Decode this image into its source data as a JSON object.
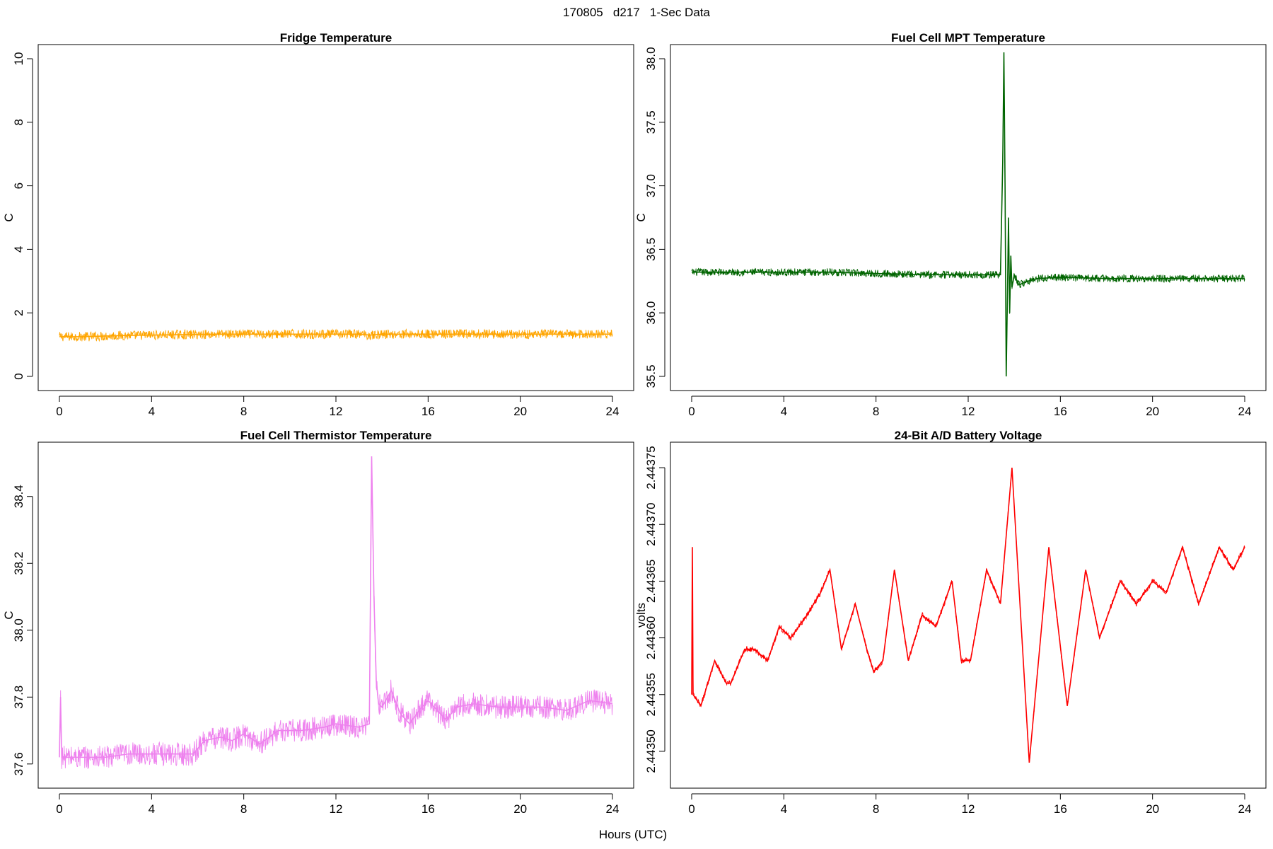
{
  "figure": {
    "title": "170805   d217   1-Sec Data",
    "xlabel": "Hours (UTC)"
  },
  "chart_data": [
    {
      "id": "fridge",
      "type": "line",
      "title": "Fridge Temperature",
      "xlabel": "Hours (UTC)",
      "ylabel": "C",
      "color": "#FFA500",
      "xlim": [
        0,
        24
      ],
      "ylim": [
        0,
        10
      ],
      "xticks": [
        0,
        4,
        8,
        12,
        16,
        20,
        24
      ],
      "yticks": [
        0,
        2,
        4,
        6,
        8,
        10
      ],
      "ytick_labels": [
        "0",
        "2",
        "4",
        "6",
        "8",
        "10"
      ],
      "noise": 0.15,
      "series": [
        {
          "name": "Fridge Temperature",
          "x": [
            0,
            1,
            2,
            3,
            4,
            5,
            6,
            7,
            8,
            9,
            10,
            11,
            12,
            13,
            13.5,
            14,
            15,
            16,
            17,
            18,
            19,
            20,
            21,
            22,
            23,
            24
          ],
          "y": [
            1.25,
            1.25,
            1.27,
            1.29,
            1.3,
            1.31,
            1.32,
            1.33,
            1.33,
            1.33,
            1.33,
            1.33,
            1.33,
            1.33,
            1.3,
            1.33,
            1.33,
            1.33,
            1.33,
            1.33,
            1.33,
            1.33,
            1.33,
            1.33,
            1.33,
            1.33
          ]
        }
      ]
    },
    {
      "id": "mpt",
      "type": "line",
      "title": "Fuel Cell MPT Temperature",
      "xlabel": "Hours (UTC)",
      "ylabel": "C",
      "color": "#006400",
      "xlim": [
        0,
        24
      ],
      "ylim": [
        35.5,
        38.0
      ],
      "xticks": [
        0,
        4,
        8,
        12,
        16,
        20,
        24
      ],
      "yticks": [
        35.5,
        36.0,
        36.5,
        37.0,
        37.5,
        38.0
      ],
      "ytick_labels": [
        "35.5",
        "36.0",
        "36.5",
        "37.0",
        "37.5",
        "38.0"
      ],
      "noise": 0.03,
      "series": [
        {
          "name": "Fuel Cell MPT Temperature",
          "x": [
            0,
            2,
            4,
            6,
            8,
            10,
            12,
            13.4,
            13.5,
            13.55,
            13.6,
            13.65,
            13.7,
            13.75,
            13.8,
            13.85,
            13.9,
            14.0,
            14.2,
            14.6,
            15.0,
            16,
            18,
            20,
            22,
            24
          ],
          "y": [
            36.32,
            36.32,
            36.32,
            36.32,
            36.31,
            36.3,
            36.3,
            36.3,
            37.2,
            38.05,
            37.0,
            35.5,
            36.1,
            36.75,
            36.0,
            36.45,
            36.2,
            36.3,
            36.22,
            36.25,
            36.27,
            36.28,
            36.27,
            36.27,
            36.27,
            36.27
          ]
        }
      ]
    },
    {
      "id": "thermistor",
      "type": "line",
      "title": "Fuel Cell Thermistor Temperature",
      "xlabel": "Hours (UTC)",
      "ylabel": "C",
      "color": "#EE82EE",
      "xlim": [
        0,
        24
      ],
      "ylim": [
        37.57,
        38.52
      ],
      "xticks": [
        0,
        4,
        8,
        12,
        16,
        20,
        24
      ],
      "yticks": [
        37.6,
        37.8,
        38.0,
        38.2,
        38.4
      ],
      "ytick_labels": [
        "37.6",
        "37.8",
        "38.0",
        "38.2",
        "38.4"
      ],
      "noise": 0.035,
      "series": [
        {
          "name": "Fuel Cell Thermistor Temperature",
          "x": [
            0,
            0.05,
            0.1,
            1,
            2,
            3,
            4,
            5,
            5.8,
            6.3,
            7,
            7.5,
            8,
            8.7,
            9.5,
            10.5,
            11.5,
            12,
            13,
            13.45,
            13.55,
            13.65,
            13.75,
            13.85,
            14,
            14.4,
            14.8,
            15.2,
            15.6,
            16,
            16.4,
            16.8,
            17.2,
            18,
            19,
            20,
            21,
            22,
            23,
            24
          ],
          "y": [
            37.62,
            37.8,
            37.62,
            37.62,
            37.62,
            37.63,
            37.63,
            37.63,
            37.63,
            37.67,
            37.68,
            37.67,
            37.69,
            37.66,
            37.7,
            37.7,
            37.71,
            37.72,
            37.71,
            37.72,
            38.52,
            38.1,
            37.85,
            37.78,
            37.77,
            37.82,
            37.75,
            37.72,
            37.76,
            37.79,
            37.76,
            37.73,
            37.77,
            37.78,
            37.77,
            37.77,
            37.77,
            37.76,
            37.79,
            37.78
          ]
        }
      ]
    },
    {
      "id": "battery",
      "type": "line",
      "title": "24-Bit A/D Battery Voltage",
      "xlabel": "Hours (UTC)",
      "ylabel": "volts",
      "color": "#FF0000",
      "xlim": [
        0,
        24
      ],
      "ylim": [
        2.44348,
        2.44376
      ],
      "xticks": [
        0,
        4,
        8,
        12,
        16,
        20,
        24
      ],
      "yticks": [
        2.4435,
        2.44355,
        2.4436,
        2.44365,
        2.4437,
        2.44375
      ],
      "ytick_labels": [
        "2.44350",
        "2.44355",
        "2.44360",
        "2.44365",
        "2.44370",
        "2.44375"
      ],
      "noise": 2.5e-06,
      "series": [
        {
          "name": "24-Bit A/D Battery Voltage",
          "x": [
            0,
            0.03,
            0.06,
            0.4,
            1.0,
            1.5,
            1.7,
            2.3,
            2.7,
            3.3,
            3.8,
            4.3,
            5.0,
            5.6,
            6.0,
            6.5,
            7.1,
            7.6,
            7.9,
            8.3,
            8.8,
            9.4,
            10.0,
            10.6,
            11.3,
            11.7,
            12.1,
            12.8,
            13.4,
            13.9,
            14.65,
            15.5,
            16.3,
            17.1,
            17.7,
            18.6,
            19.3,
            20.0,
            20.6,
            21.3,
            22.0,
            22.9,
            23.5,
            24.0
          ],
          "y": [
            2.44355,
            2.44368,
            2.44355,
            2.44354,
            2.44358,
            2.44356,
            2.44356,
            2.44359,
            2.44359,
            2.44358,
            2.44361,
            2.4436,
            2.44362,
            2.44364,
            2.44366,
            2.44359,
            2.44363,
            2.44359,
            2.44357,
            2.44358,
            2.44366,
            2.44358,
            2.44362,
            2.44361,
            2.44365,
            2.44358,
            2.44358,
            2.44366,
            2.44363,
            2.44375,
            2.44349,
            2.44368,
            2.44354,
            2.44366,
            2.4436,
            2.44365,
            2.44363,
            2.44365,
            2.44364,
            2.44368,
            2.44363,
            2.44368,
            2.44366,
            2.44368
          ]
        }
      ]
    }
  ]
}
